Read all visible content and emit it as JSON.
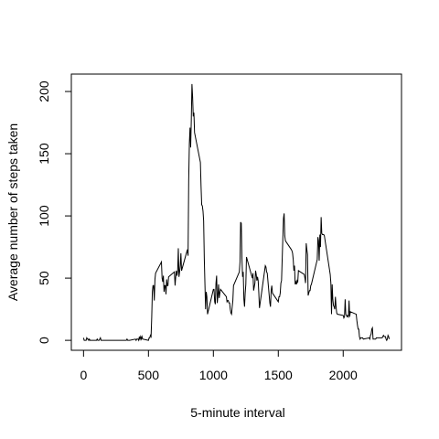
{
  "chart_data": {
    "type": "line",
    "xlabel": "5-minute interval",
    "ylabel": "Average number of steps taken",
    "color": "#000000",
    "xlim": [
      -94,
      2449
    ],
    "ylim": [
      -8,
      214
    ],
    "xticks": [
      0,
      500,
      1000,
      1500,
      2000
    ],
    "yticks": [
      0,
      50,
      100,
      150,
      200
    ],
    "x": [
      0,
      5,
      10,
      15,
      20,
      25,
      30,
      35,
      40,
      45,
      50,
      55,
      100,
      105,
      110,
      115,
      120,
      125,
      130,
      135,
      140,
      145,
      150,
      155,
      200,
      205,
      210,
      215,
      220,
      225,
      230,
      235,
      240,
      245,
      250,
      255,
      300,
      305,
      310,
      315,
      320,
      325,
      330,
      335,
      340,
      345,
      350,
      355,
      400,
      405,
      410,
      415,
      420,
      425,
      430,
      435,
      440,
      445,
      450,
      455,
      500,
      505,
      510,
      515,
      520,
      525,
      530,
      535,
      540,
      545,
      550,
      555,
      600,
      605,
      610,
      615,
      620,
      625,
      630,
      635,
      640,
      645,
      650,
      655,
      700,
      705,
      710,
      715,
      720,
      725,
      730,
      735,
      740,
      745,
      750,
      755,
      800,
      805,
      810,
      815,
      820,
      825,
      830,
      835,
      840,
      845,
      850,
      855,
      900,
      905,
      910,
      915,
      920,
      925,
      930,
      935,
      940,
      945,
      950,
      955,
      1000,
      1005,
      1010,
      1015,
      1020,
      1025,
      1030,
      1035,
      1040,
      1045,
      1050,
      1055,
      1100,
      1105,
      1110,
      1115,
      1120,
      1125,
      1130,
      1135,
      1140,
      1145,
      1150,
      1155,
      1200,
      1205,
      1210,
      1215,
      1220,
      1225,
      1230,
      1235,
      1240,
      1245,
      1250,
      1255,
      1300,
      1305,
      1310,
      1315,
      1320,
      1325,
      1330,
      1335,
      1340,
      1345,
      1350,
      1355,
      1400,
      1405,
      1410,
      1415,
      1420,
      1425,
      1430,
      1435,
      1440,
      1445,
      1450,
      1455,
      1500,
      1505,
      1510,
      1515,
      1520,
      1525,
      1530,
      1535,
      1540,
      1545,
      1550,
      1555,
      1600,
      1605,
      1610,
      1615,
      1620,
      1625,
      1630,
      1635,
      1640,
      1645,
      1650,
      1655,
      1700,
      1705,
      1710,
      1715,
      1720,
      1725,
      1730,
      1735,
      1740,
      1745,
      1750,
      1755,
      1800,
      1805,
      1810,
      1815,
      1820,
      1825,
      1830,
      1835,
      1840,
      1845,
      1850,
      1855,
      1900,
      1905,
      1910,
      1915,
      1920,
      1925,
      1930,
      1935,
      1940,
      1945,
      1950,
      1955,
      2000,
      2005,
      2010,
      2015,
      2020,
      2025,
      2030,
      2035,
      2040,
      2045,
      2050,
      2055,
      2100,
      2105,
      2110,
      2115,
      2120,
      2125,
      2130,
      2135,
      2140,
      2145,
      2150,
      2155,
      2200,
      2205,
      2210,
      2215,
      2220,
      2225,
      2230,
      2235,
      2240,
      2245,
      2250,
      2255,
      2300,
      2305,
      2310,
      2315,
      2320,
      2325,
      2330,
      2335,
      2340,
      2345,
      2350,
      2355
    ],
    "values": [
      2,
      0,
      0,
      0,
      0,
      2,
      1,
      1,
      0,
      1,
      0,
      0,
      0,
      1,
      0,
      0,
      0,
      1,
      2,
      0,
      0,
      0,
      0,
      0,
      0,
      0,
      0,
      0,
      0,
      0,
      0,
      0,
      0,
      0,
      0,
      0,
      0,
      0,
      0,
      0,
      0,
      0,
      0,
      1,
      0,
      0,
      0,
      0,
      1,
      0,
      1,
      1,
      1,
      0,
      3,
      1,
      3,
      1,
      3,
      1,
      0,
      2,
      2,
      4,
      3,
      18,
      39,
      44,
      44,
      32,
      49,
      54,
      63,
      50,
      47,
      52,
      39,
      44,
      44,
      37,
      49,
      44,
      44,
      51,
      55,
      44,
      51,
      56,
      52,
      56,
      74,
      51,
      55,
      60,
      70,
      56,
      73,
      68,
      129,
      158,
      171,
      155,
      177,
      206,
      196,
      180,
      183,
      167,
      143,
      124,
      109,
      108,
      104,
      96,
      66,
      45,
      25,
      39,
      35,
      21,
      41,
      41,
      31,
      29,
      46,
      52,
      30,
      36,
      45,
      34,
      38,
      41,
      35,
      31,
      32,
      32,
      30,
      30,
      25,
      22,
      21,
      27,
      32,
      44,
      55,
      63,
      95,
      94,
      66,
      51,
      55,
      33,
      27,
      38,
      45,
      67,
      50,
      54,
      40,
      43,
      46,
      56,
      53,
      48,
      51,
      48,
      38,
      26,
      60,
      59,
      55,
      54,
      48,
      42,
      36,
      30,
      27,
      40,
      44,
      38,
      31,
      35,
      35,
      38,
      46,
      48,
      65,
      82,
      98,
      102,
      84,
      80,
      73,
      72,
      70,
      65,
      56,
      60,
      45,
      47,
      45,
      48,
      47,
      56,
      53,
      50,
      46,
      78,
      73,
      69,
      36,
      38,
      40,
      40,
      44,
      45,
      65,
      83,
      80,
      64,
      85,
      75,
      99,
      86,
      85,
      85,
      85,
      84,
      53,
      46,
      21,
      45,
      33,
      28,
      27,
      25,
      35,
      27,
      22,
      21,
      20,
      18,
      19,
      33,
      21,
      20,
      19,
      20,
      19,
      32,
      19,
      23,
      21,
      16,
      12,
      9,
      9,
      3,
      1,
      2,
      2,
      2,
      2,
      1,
      2,
      1,
      4,
      5,
      9,
      10,
      1,
      1,
      1,
      1,
      1,
      2,
      2,
      3,
      4,
      3,
      3,
      3,
      1,
      0,
      1,
      4,
      3,
      1
    ]
  }
}
